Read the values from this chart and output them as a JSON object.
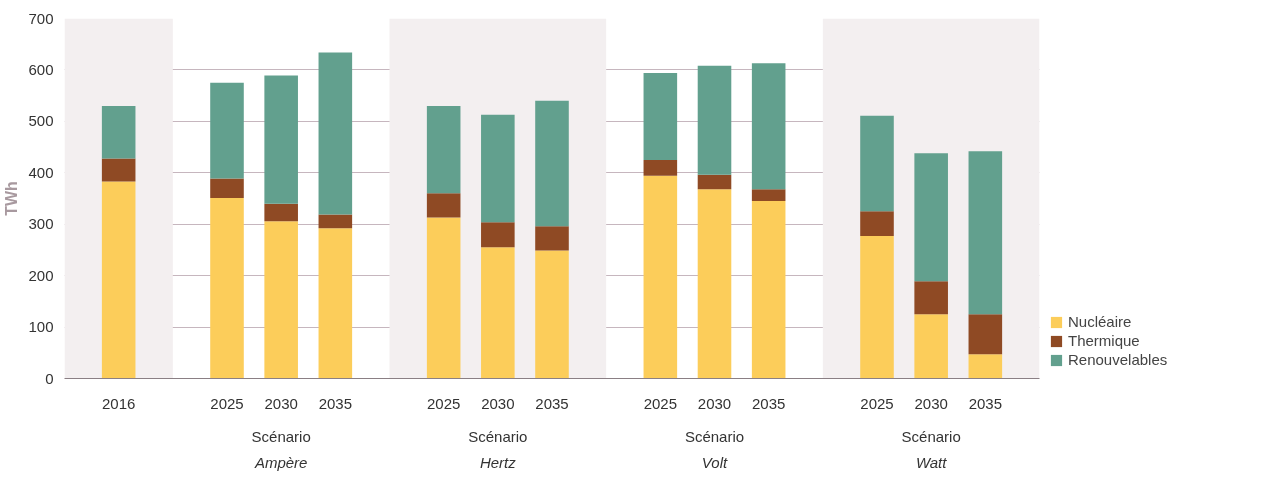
{
  "chart_data": {
    "type": "bar",
    "stacked": true,
    "ylabel": "TWh",
    "categories": [
      "2016",
      "2025",
      "2030",
      "2035",
      "2025",
      "2030",
      "2035",
      "2025",
      "2030",
      "2035",
      "2025",
      "2030",
      "2035"
    ],
    "series": [
      {
        "name": "Nucléaire",
        "color": "#fccd5a",
        "values": [
          383,
          351,
          306,
          292,
          313,
          255,
          249,
          394,
          368,
          345,
          277,
          125,
          47
        ]
      },
      {
        "name": "Thermique",
        "color": "#8f4a24",
        "values": [
          45,
          38,
          34,
          27,
          47,
          49,
          47,
          31,
          28,
          23,
          48,
          64,
          78
        ]
      },
      {
        "name": "Renouvelables",
        "color": "#62a08e",
        "values": [
          102,
          186,
          249,
          315,
          170,
          209,
          244,
          169,
          212,
          245,
          186,
          249,
          317
        ]
      }
    ],
    "annotations": [
      "Scénario\nAmpère",
      "Scénario\nHertz",
      "Scénario\nVolt",
      "Scénario\nWatt"
    ],
    "ylim": [
      0,
      700
    ],
    "yticks": [
      0,
      100,
      200,
      300,
      400,
      500,
      600,
      700
    ],
    "grid": "y",
    "legend": "bottom right"
  }
}
